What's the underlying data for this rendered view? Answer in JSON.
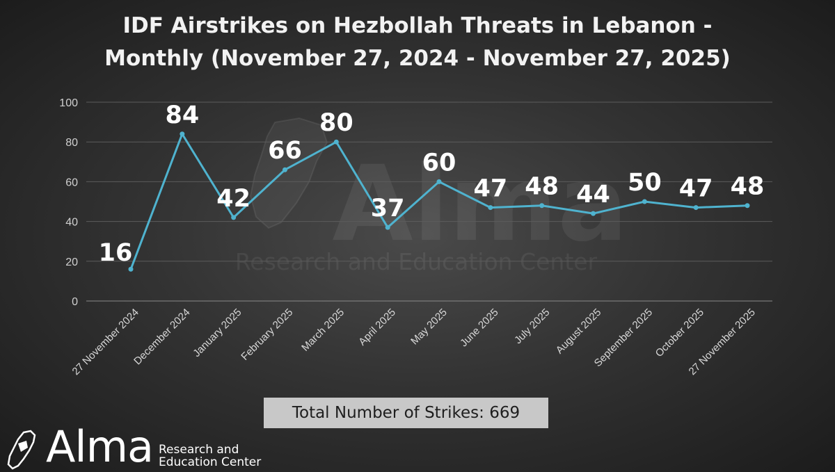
{
  "chart_data": {
    "type": "line",
    "title_lines": [
      "IDF Airstrikes on Hezbollah Threats in Lebanon -",
      "Monthly  (November 27, 2024 - November 27, 2025)"
    ],
    "categories": [
      "27 November 2024",
      "December 2024",
      "January 2025",
      "February 2025",
      "March 2025",
      "April 2025",
      "May 2025",
      "June 2025",
      "July 2025",
      "August 2025",
      "September 2025",
      "October 2025",
      "27 November 2025"
    ],
    "values": [
      16,
      84,
      42,
      66,
      80,
      37,
      60,
      47,
      48,
      44,
      50,
      47,
      48
    ],
    "data_labels": [
      "16",
      "84",
      "42",
      "66",
      "80",
      "37",
      "60",
      "47",
      "48",
      "44",
      "50",
      "47",
      "48"
    ],
    "yticks": [
      0,
      20,
      40,
      60,
      80,
      100
    ],
    "ylim": [
      0,
      100
    ],
    "grid": true,
    "line_color": "#4fb3cf",
    "legend": "none"
  },
  "total_box": {
    "text": "Total Number of Strikes: 669"
  },
  "watermark": {
    "name": "Alma",
    "subtitle": "Research and Education Center"
  },
  "logo": {
    "name": "Alma",
    "line1": "Research and",
    "line2": "Education Center",
    "icon": "lebanon-map-icon"
  }
}
